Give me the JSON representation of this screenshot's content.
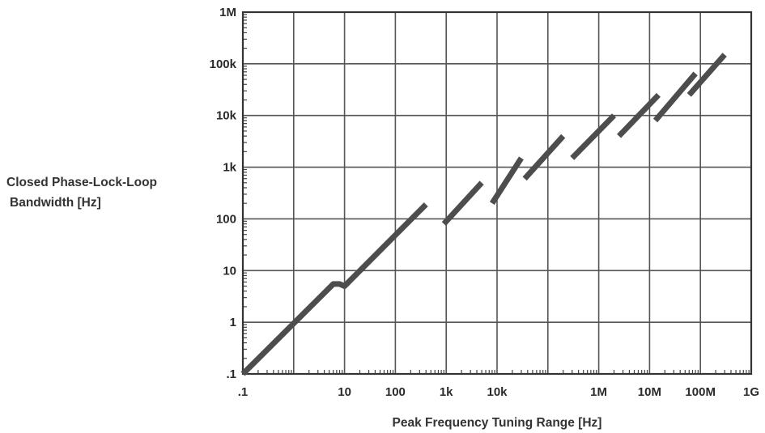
{
  "chart_data": {
    "type": "line",
    "title": "",
    "xlabel": "Peak Frequency Tuning Range [Hz]",
    "ylabel_lines": [
      "Closed Phase-Lock-Loop",
      "Bandwidth [Hz]"
    ],
    "x_scale": "log",
    "y_scale": "log",
    "xlim": [
      0.1,
      1000000000
    ],
    "ylim": [
      0.1,
      1000000
    ],
    "grid": true,
    "x_ticks": [
      {
        "value": 0.1,
        "label": ".1"
      },
      {
        "value": 10,
        "label": "10"
      },
      {
        "value": 100,
        "label": "100"
      },
      {
        "value": 1000,
        "label": "1k"
      },
      {
        "value": 10000,
        "label": "10k"
      },
      {
        "value": 1000000,
        "label": "1M"
      },
      {
        "value": 10000000,
        "label": "10M"
      },
      {
        "value": 100000000,
        "label": "100M"
      },
      {
        "value": 1000000000,
        "label": "1G"
      }
    ],
    "y_ticks": [
      {
        "value": 1000000,
        "label": "1M"
      },
      {
        "value": 100000,
        "label": "100k"
      },
      {
        "value": 10000,
        "label": "10k"
      },
      {
        "value": 1000,
        "label": "1k"
      },
      {
        "value": 100,
        "label": "100"
      },
      {
        "value": 10,
        "label": "10"
      },
      {
        "value": 1,
        "label": "1"
      },
      {
        "value": 0.1,
        "label": ".1"
      }
    ],
    "series": [
      {
        "style": "solid",
        "color": "#4d4d4d",
        "points": [
          [
            0.1,
            0.1
          ],
          [
            6,
            5.5
          ],
          [
            8,
            5.5
          ],
          [
            10,
            5
          ],
          [
            400,
            190
          ]
        ]
      },
      {
        "style": "dashed",
        "color": "#4d4d4d",
        "segments": [
          [
            [
              900,
              80
            ],
            [
              5000,
              500
            ]
          ],
          [
            [
              8000,
              200
            ],
            [
              30000,
              1500
            ]
          ],
          [
            [
              35000,
              600
            ],
            [
              200000,
              4000
            ]
          ],
          [
            [
              300000,
              1500
            ],
            [
              2000000,
              10000
            ]
          ],
          [
            [
              2500000,
              4000
            ],
            [
              15000000,
              25000
            ]
          ],
          [
            [
              13000000,
              8000
            ],
            [
              80000000,
              65000
            ]
          ],
          [
            [
              60000000,
              25000
            ],
            [
              300000000,
              150000
            ]
          ]
        ]
      }
    ]
  }
}
